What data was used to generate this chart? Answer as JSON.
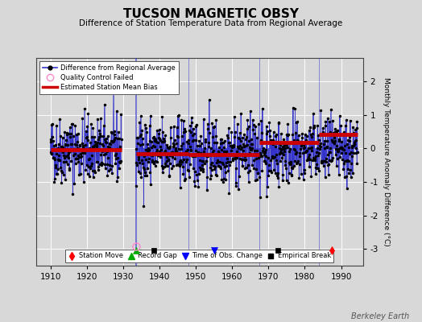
{
  "title": "TUCSON MAGNETIC OBSY",
  "subtitle": "Difference of Station Temperature Data from Regional Average",
  "ylabel": "Monthly Temperature Anomaly Difference (°C)",
  "xlabel_years": [
    1910,
    1920,
    1930,
    1940,
    1950,
    1960,
    1970,
    1980,
    1990
  ],
  "xlim": [
    1906,
    1996
  ],
  "ylim": [
    -3.5,
    2.7
  ],
  "yticks": [
    -3,
    -2,
    -1,
    0,
    1,
    2
  ],
  "background_color": "#d8d8d8",
  "plot_bg_color": "#d8d8d8",
  "line_color": "#3333cc",
  "dot_color": "#000000",
  "bias_color": "#cc0000",
  "watermark": "Berkeley Earth",
  "seed": 42,
  "seg1_start": 1910.0,
  "seg1_end": 1929.5,
  "seg1_bias": -0.05,
  "seg1_std": 0.5,
  "seg1_n": 236,
  "seg2_start": 1933.5,
  "seg2_end": 1994.5,
  "seg2_bias": -0.1,
  "seg2_std": 0.5,
  "seg2_n": 733,
  "bias_segments": [
    {
      "x_start": 1910.0,
      "x_end": 1929.5,
      "bias": -0.05
    },
    {
      "x_start": 1933.5,
      "x_end": 1948.0,
      "bias": -0.15
    },
    {
      "x_start": 1948.0,
      "x_end": 1967.5,
      "bias": -0.18
    },
    {
      "x_start": 1967.5,
      "x_end": 1984.0,
      "bias": 0.18
    },
    {
      "x_start": 1984.0,
      "x_end": 1994.5,
      "bias": 0.42
    }
  ],
  "station_move": [
    1987.5
  ],
  "record_gap": [
    1933.5
  ],
  "time_obs_change": [
    1955.0
  ],
  "empirical_break": [
    1938.5,
    1972.5
  ],
  "qc_fail": [
    1933.5
  ],
  "marker_y": -3.05,
  "gap_line_x": 1933.5,
  "break_lines": [
    1948.0,
    1967.5,
    1984.0
  ]
}
